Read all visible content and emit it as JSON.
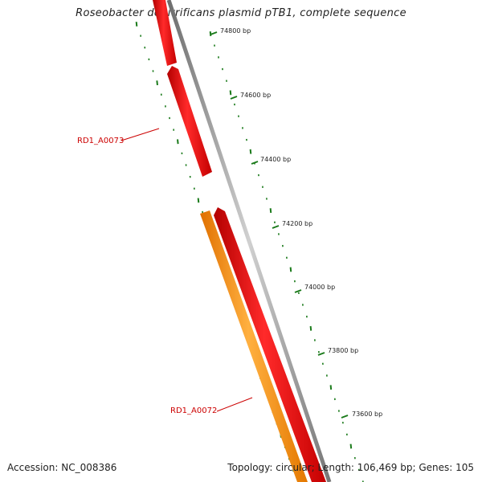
{
  "title": "Roseobacter denitrificans plasmid pTB1, complete sequence",
  "footer": {
    "accession": "Accession: NC_008386",
    "summary": "Topology: circular; Length: 106,469 bp; Genes: 105"
  },
  "ruler": {
    "ticks": [
      "74800 bp",
      "74600 bp",
      "74400 bp",
      "74200 bp",
      "74000 bp",
      "73800 bp",
      "73600 bp"
    ],
    "color": "#1a7a1a"
  },
  "backbone_color": "#8c8c8c",
  "genes": [
    {
      "name": "RD1_A0073",
      "label": "RD1_A0073",
      "color": "#ee0000",
      "strand": "forward"
    },
    {
      "name": "RD1_A0072",
      "label": "RD1_A0072",
      "color": "#ff8c00",
      "strand": "reverse"
    },
    {
      "name": "gene-red-lower",
      "label": "",
      "color": "#ee0000",
      "strand": "forward"
    }
  ],
  "label_color": "#cc0000"
}
